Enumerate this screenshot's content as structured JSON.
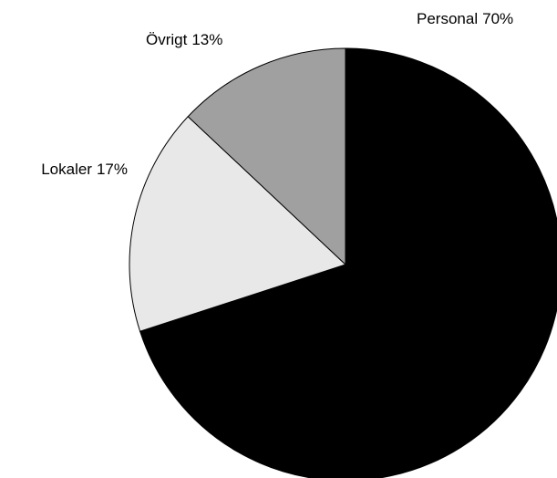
{
  "chart_data": {
    "type": "pie",
    "categories": [
      "Personal",
      "Lokaler",
      "Övrigt"
    ],
    "values": [
      70,
      17,
      13
    ],
    "value_labels": [
      "70%",
      "17%",
      "13%"
    ],
    "colors": [
      "#000000",
      "#e8e8e8",
      "#a0a0a0"
    ],
    "start_angle": 0,
    "direction": "clockwise"
  }
}
